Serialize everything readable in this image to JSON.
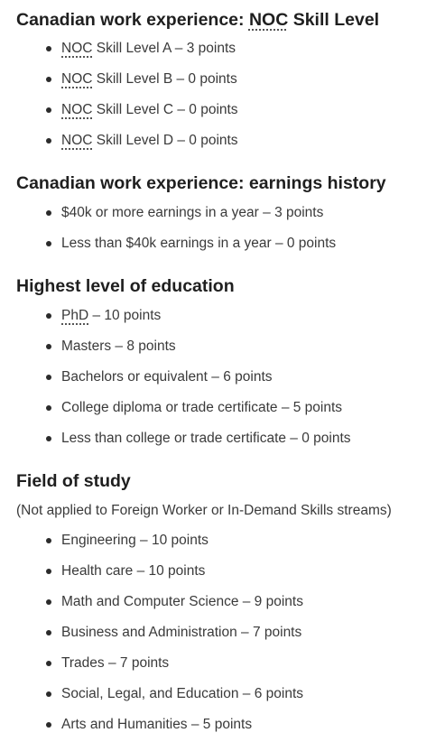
{
  "sections": [
    {
      "title_prefix": "Canadian work experience: ",
      "title_abbr": "NOC",
      "title_suffix": " Skill Level",
      "items": [
        {
          "abbr": "NOC",
          "text": " Skill Level A – 3 points"
        },
        {
          "abbr": "NOC",
          "text": " Skill Level B – 0 points"
        },
        {
          "abbr": "NOC",
          "text": " Skill Level C – 0 points"
        },
        {
          "abbr": "NOC",
          "text": " Skill Level D – 0 points"
        }
      ]
    },
    {
      "title": "Canadian work experience: earnings history",
      "items": [
        {
          "text": "$40k or more earnings in a year – 3 points"
        },
        {
          "text": "Less than $40k earnings in a year – 0 points"
        }
      ]
    },
    {
      "title": "Highest level of education",
      "items": [
        {
          "abbr": "PhD",
          "text": " – 10 points"
        },
        {
          "text": "Masters – 8 points"
        },
        {
          "text": "Bachelors or equivalent – 6 points"
        },
        {
          "text": "College diploma or trade certificate – 5 points"
        },
        {
          "text": "Less than college or trade certificate – 0 points"
        }
      ]
    },
    {
      "title": "Field of study",
      "note": "(Not applied to Foreign Worker or In-Demand Skills streams)",
      "items": [
        {
          "text": "Engineering – 10 points"
        },
        {
          "text": "Health care – 10 points"
        },
        {
          "text": "Math and Computer Science – 9 points"
        },
        {
          "text": "Business and Administration – 7 points"
        },
        {
          "text": "Trades – 7 points"
        },
        {
          "text": "Social, Legal, and Education – 6 points"
        },
        {
          "text": "Arts and Humanities – 5 points"
        }
      ]
    }
  ]
}
